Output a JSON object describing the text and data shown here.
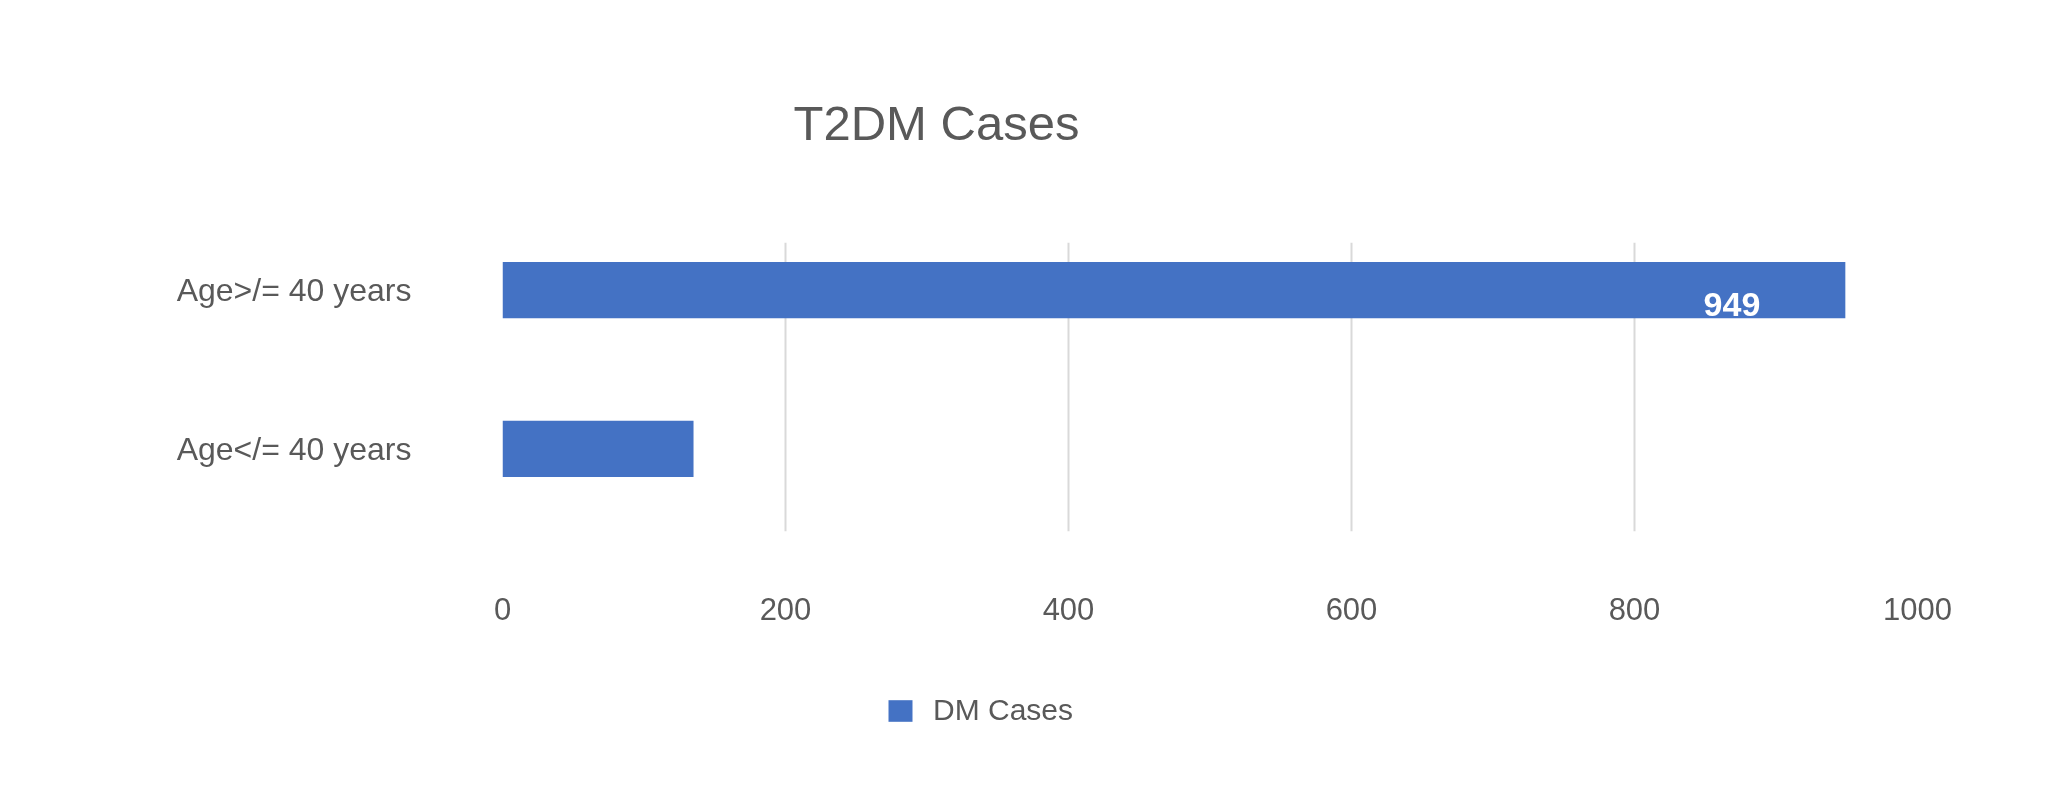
{
  "chart_data": {
    "type": "bar",
    "orientation": "horizontal",
    "title": "T2DM Cases",
    "categories": [
      "Age>/= 40 years",
      "Age</= 40 years"
    ],
    "series": [
      {
        "name": "DM Cases",
        "color": "#4472c4",
        "values": [
          949,
          135
        ],
        "value_labels": [
          "949",
          null
        ]
      }
    ],
    "xlim": [
      0,
      1000
    ],
    "xticks": [
      0,
      200,
      400,
      600,
      800,
      1000
    ],
    "grid": "x",
    "legend": "bottom"
  }
}
